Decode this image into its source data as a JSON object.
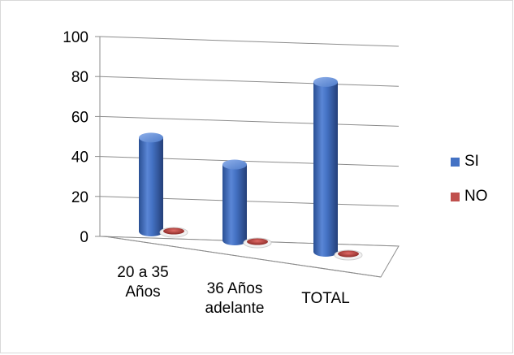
{
  "chart_data": {
    "type": "bar",
    "style": "3d-cylinder",
    "categories": [
      [
        "20 a 35",
        "Años"
      ],
      [
        "36 Años",
        "adelante"
      ],
      [
        "TOTAL"
      ]
    ],
    "series": [
      {
        "name": "SI",
        "values": [
          47,
          38,
          85
        ],
        "color": "#4472c4"
      },
      {
        "name": "NO",
        "values": [
          0,
          0,
          0
        ],
        "color": "#c0504d"
      }
    ],
    "y_ticks": [
      "0",
      "20",
      "40",
      "60",
      "80",
      "100"
    ],
    "ylim": [
      0,
      100
    ],
    "grid": true,
    "legend_position": "right",
    "title": "",
    "xlabel": "",
    "ylabel": ""
  }
}
